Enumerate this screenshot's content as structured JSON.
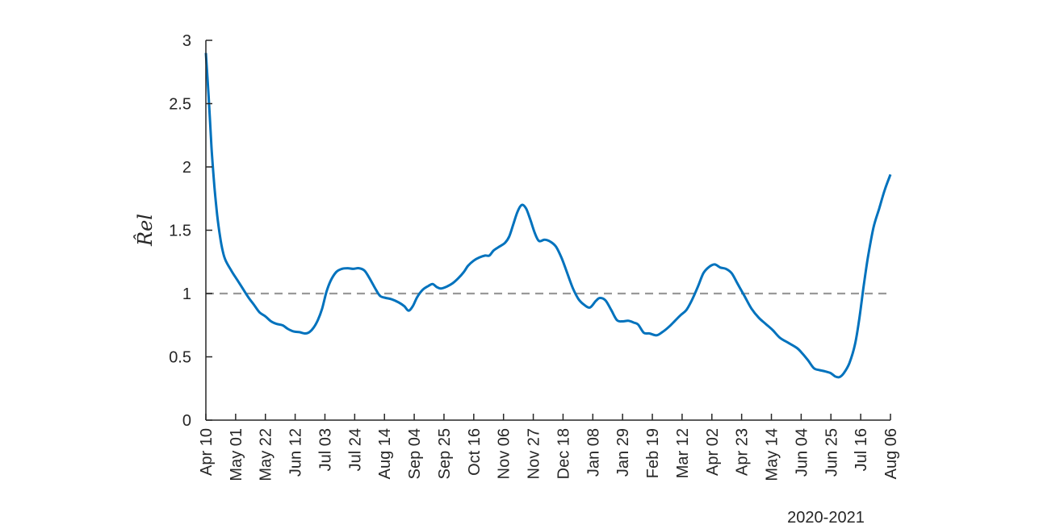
{
  "chart_data": {
    "type": "line",
    "ylabel": "R̂el",
    "year_label": "2020-2021",
    "ylim": [
      0,
      3
    ],
    "yticks": [
      0,
      0.5,
      1,
      1.5,
      2,
      2.5,
      3
    ],
    "ytick_labels": [
      "0",
      "0.5",
      "1",
      "1.5",
      "2",
      "2.5",
      "3"
    ],
    "xticks": [
      "2020-04-10",
      "2020-05-01",
      "2020-05-22",
      "2020-06-12",
      "2020-07-03",
      "2020-07-24",
      "2020-08-14",
      "2020-09-04",
      "2020-09-25",
      "2020-10-16",
      "2020-11-06",
      "2020-11-27",
      "2020-12-18",
      "2021-01-08",
      "2021-01-29",
      "2021-02-19",
      "2021-03-12",
      "2021-04-02",
      "2021-04-23",
      "2021-05-14",
      "2021-06-04",
      "2021-06-25",
      "2021-07-16",
      "2021-08-06"
    ],
    "xtick_labels": [
      "Apr 10",
      "May 01",
      "May 22",
      "Jun 12",
      "Jul 03",
      "Jul 24",
      "Aug 14",
      "Sep 04",
      "Sep 25",
      "Oct 16",
      "Nov 06",
      "Nov 27",
      "Dec 18",
      "Jan 08",
      "Jan 29",
      "Feb 19",
      "Mar 12",
      "Apr 02",
      "Apr 23",
      "May 14",
      "Jun 04",
      "Jun 25",
      "Jul 16",
      "Aug 06"
    ],
    "xlim": [
      "2020-04-10",
      "2021-08-06"
    ],
    "reference_line": {
      "y": 1,
      "style": "dashed",
      "color": "#999999"
    },
    "series": [
      {
        "color": "#0072bd",
        "points": [
          [
            "2020-04-10",
            2.9
          ],
          [
            "2020-04-12",
            2.55
          ],
          [
            "2020-04-14",
            2.15
          ],
          [
            "2020-04-16",
            1.85
          ],
          [
            "2020-04-18",
            1.62
          ],
          [
            "2020-04-20",
            1.45
          ],
          [
            "2020-04-22",
            1.33
          ],
          [
            "2020-04-24",
            1.26
          ],
          [
            "2020-04-28",
            1.18
          ],
          [
            "2020-05-02",
            1.11
          ],
          [
            "2020-05-06",
            1.04
          ],
          [
            "2020-05-10",
            0.97
          ],
          [
            "2020-05-14",
            0.91
          ],
          [
            "2020-05-18",
            0.85
          ],
          [
            "2020-05-22",
            0.82
          ],
          [
            "2020-05-26",
            0.78
          ],
          [
            "2020-05-30",
            0.76
          ],
          [
            "2020-06-03",
            0.75
          ],
          [
            "2020-06-07",
            0.72
          ],
          [
            "2020-06-11",
            0.7
          ],
          [
            "2020-06-15",
            0.695
          ],
          [
            "2020-06-19",
            0.685
          ],
          [
            "2020-06-22",
            0.695
          ],
          [
            "2020-06-25",
            0.73
          ],
          [
            "2020-06-28",
            0.79
          ],
          [
            "2020-07-01",
            0.88
          ],
          [
            "2020-07-04",
            1.01
          ],
          [
            "2020-07-07",
            1.1
          ],
          [
            "2020-07-11",
            1.17
          ],
          [
            "2020-07-15",
            1.195
          ],
          [
            "2020-07-19",
            1.2
          ],
          [
            "2020-07-23",
            1.195
          ],
          [
            "2020-07-27",
            1.2
          ],
          [
            "2020-07-31",
            1.18
          ],
          [
            "2020-08-04",
            1.11
          ],
          [
            "2020-08-08",
            1.03
          ],
          [
            "2020-08-11",
            0.98
          ],
          [
            "2020-08-15",
            0.965
          ],
          [
            "2020-08-19",
            0.955
          ],
          [
            "2020-08-24",
            0.93
          ],
          [
            "2020-08-28",
            0.9
          ],
          [
            "2020-08-31",
            0.865
          ],
          [
            "2020-09-03",
            0.9
          ],
          [
            "2020-09-06",
            0.97
          ],
          [
            "2020-09-10",
            1.03
          ],
          [
            "2020-09-14",
            1.06
          ],
          [
            "2020-09-17",
            1.075
          ],
          [
            "2020-09-20",
            1.05
          ],
          [
            "2020-09-23",
            1.04
          ],
          [
            "2020-09-27",
            1.055
          ],
          [
            "2020-10-01",
            1.08
          ],
          [
            "2020-10-05",
            1.12
          ],
          [
            "2020-10-09",
            1.17
          ],
          [
            "2020-10-12",
            1.22
          ],
          [
            "2020-10-16",
            1.26
          ],
          [
            "2020-10-20",
            1.285
          ],
          [
            "2020-10-24",
            1.3
          ],
          [
            "2020-10-27",
            1.3
          ],
          [
            "2020-10-30",
            1.34
          ],
          [
            "2020-11-03",
            1.37
          ],
          [
            "2020-11-07",
            1.4
          ],
          [
            "2020-11-10",
            1.45
          ],
          [
            "2020-11-13",
            1.55
          ],
          [
            "2020-11-16",
            1.65
          ],
          [
            "2020-11-19",
            1.7
          ],
          [
            "2020-11-22",
            1.67
          ],
          [
            "2020-11-25",
            1.58
          ],
          [
            "2020-11-28",
            1.48
          ],
          [
            "2020-12-01",
            1.415
          ],
          [
            "2020-12-05",
            1.425
          ],
          [
            "2020-12-09",
            1.41
          ],
          [
            "2020-12-13",
            1.37
          ],
          [
            "2020-12-17",
            1.28
          ],
          [
            "2020-12-21",
            1.16
          ],
          [
            "2020-12-25",
            1.04
          ],
          [
            "2020-12-29",
            0.955
          ],
          [
            "2021-01-02",
            0.91
          ],
          [
            "2021-01-06",
            0.89
          ],
          [
            "2021-01-10",
            0.94
          ],
          [
            "2021-01-13",
            0.965
          ],
          [
            "2021-01-17",
            0.945
          ],
          [
            "2021-01-21",
            0.87
          ],
          [
            "2021-01-25",
            0.79
          ],
          [
            "2021-01-29",
            0.78
          ],
          [
            "2021-02-02",
            0.785
          ],
          [
            "2021-02-06",
            0.77
          ],
          [
            "2021-02-09",
            0.755
          ],
          [
            "2021-02-13",
            0.69
          ],
          [
            "2021-02-17",
            0.685
          ],
          [
            "2021-02-22",
            0.67
          ],
          [
            "2021-02-26",
            0.695
          ],
          [
            "2021-03-03",
            0.74
          ],
          [
            "2021-03-07",
            0.785
          ],
          [
            "2021-03-11",
            0.83
          ],
          [
            "2021-03-15",
            0.87
          ],
          [
            "2021-03-19",
            0.95
          ],
          [
            "2021-03-23",
            1.05
          ],
          [
            "2021-03-27",
            1.16
          ],
          [
            "2021-03-31",
            1.21
          ],
          [
            "2021-04-04",
            1.23
          ],
          [
            "2021-04-08",
            1.205
          ],
          [
            "2021-04-12",
            1.195
          ],
          [
            "2021-04-16",
            1.16
          ],
          [
            "2021-04-20",
            1.08
          ],
          [
            "2021-04-25",
            0.98
          ],
          [
            "2021-04-30",
            0.88
          ],
          [
            "2021-05-05",
            0.81
          ],
          [
            "2021-05-10",
            0.76
          ],
          [
            "2021-05-15",
            0.71
          ],
          [
            "2021-05-20",
            0.65
          ],
          [
            "2021-05-26",
            0.61
          ],
          [
            "2021-06-01",
            0.57
          ],
          [
            "2021-06-05",
            0.525
          ],
          [
            "2021-06-09",
            0.47
          ],
          [
            "2021-06-13",
            0.41
          ],
          [
            "2021-06-17",
            0.395
          ],
          [
            "2021-06-21",
            0.385
          ],
          [
            "2021-06-25",
            0.37
          ],
          [
            "2021-06-28",
            0.345
          ],
          [
            "2021-07-01",
            0.34
          ],
          [
            "2021-07-04",
            0.37
          ],
          [
            "2021-07-08",
            0.45
          ],
          [
            "2021-07-12",
            0.6
          ],
          [
            "2021-07-15",
            0.8
          ],
          [
            "2021-07-18",
            1.05
          ],
          [
            "2021-07-21",
            1.28
          ],
          [
            "2021-07-25",
            1.52
          ],
          [
            "2021-07-29",
            1.67
          ],
          [
            "2021-08-02",
            1.82
          ],
          [
            "2021-08-06",
            1.94
          ]
        ]
      }
    ]
  }
}
